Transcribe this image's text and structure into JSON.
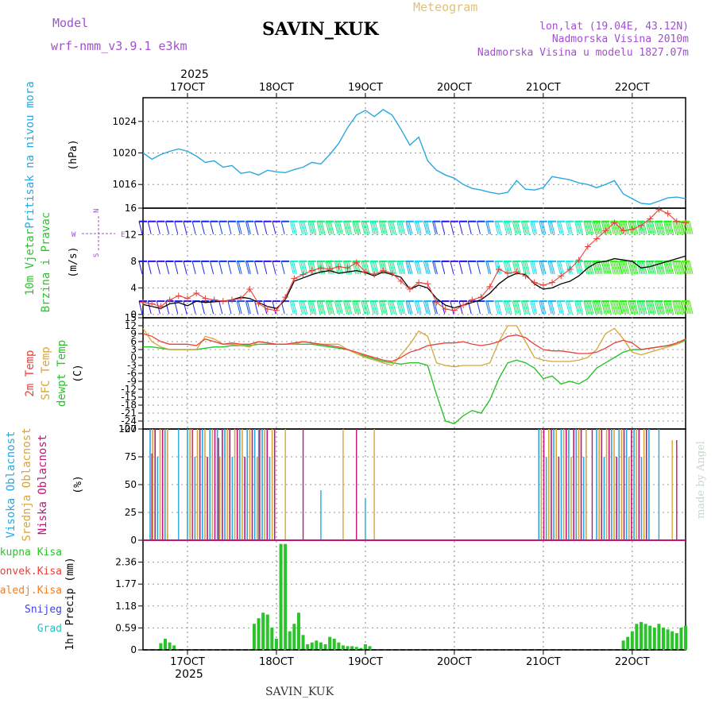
{
  "header": {
    "model_label": "Model",
    "model_name": "wrf-nmm_v3.9.1 e3km",
    "station": "SAVIN_KUK",
    "product": "Meteogram",
    "lonlat": "lon,lat (19.04E, 43.12N)",
    "elevation": "Nadmorska Visina 2010m",
    "model_elevation": "Nadmorska Visina u modelu 1827.07m",
    "footer_station": "SAVIN_KUK",
    "watermark": "made by Angel",
    "year": "2025"
  },
  "colors": {
    "pressure": "#29a8e0",
    "temp2m": "#e8403a",
    "sfc": "#d9a53a",
    "dewpt": "#2ac42a",
    "high_cloud": "#29a8e0",
    "mid_cloud": "#d9a53a",
    "low_cloud": "#c2157a",
    "rain": "#2ac42a",
    "conv": "#e8403a",
    "frz": "#f07e2a",
    "snow": "#4040e0",
    "hail": "#2ac0c0",
    "model": "#a050d0",
    "header_orange": "#e6c070"
  },
  "chart_data": [
    {
      "type": "line",
      "id": "pressure",
      "title": "Pritisak na nivou mora",
      "ylabel": "(hPa)",
      "ylim": [
        1013,
        1027
      ],
      "yticks": [
        "1016",
        "1020",
        "1024"
      ],
      "x_days": [
        "17OCT",
        "18OCT",
        "19OCT",
        "20OCT",
        "21OCT",
        "22OCT"
      ],
      "x_range_days": [
        16.5,
        22.6
      ],
      "series": [
        {
          "name": "MSLP",
          "x": [
            16.5,
            16.6,
            16.7,
            16.8,
            16.9,
            17.0,
            17.1,
            17.2,
            17.3,
            17.4,
            17.5,
            17.6,
            17.7,
            17.8,
            17.9,
            18.0,
            18.1,
            18.2,
            18.3,
            18.4,
            18.5,
            18.6,
            18.7,
            18.8,
            18.9,
            19.0,
            19.1,
            19.2,
            19.3,
            19.4,
            19.5,
            19.6,
            19.7,
            19.8,
            19.9,
            20.0,
            20.1,
            20.2,
            20.3,
            20.4,
            20.5,
            20.6,
            20.7,
            20.8,
            20.9,
            21.0,
            21.1,
            21.2,
            21.3,
            21.4,
            21.5,
            21.6,
            21.7,
            21.8,
            21.9,
            22.0,
            22.1,
            22.2,
            22.3,
            22.4,
            22.5,
            22.6
          ],
          "values": [
            1020.0,
            1019.2,
            1019.8,
            1020.2,
            1020.5,
            1020.2,
            1019.6,
            1018.8,
            1019.0,
            1018.2,
            1018.4,
            1017.4,
            1017.6,
            1017.2,
            1017.8,
            1017.6,
            1017.5,
            1017.9,
            1018.2,
            1018.8,
            1018.6,
            1019.8,
            1021.2,
            1023.2,
            1024.8,
            1025.4,
            1024.6,
            1025.5,
            1024.8,
            1023.0,
            1021.0,
            1022.0,
            1019.0,
            1017.8,
            1017.2,
            1016.8,
            1016.0,
            1015.5,
            1015.3,
            1015.0,
            1014.8,
            1015.0,
            1016.5,
            1015.4,
            1015.3,
            1015.6,
            1017.0,
            1016.8,
            1016.6,
            1016.2,
            1016.0,
            1015.6,
            1016.0,
            1016.5,
            1014.8,
            1014.2,
            1013.6,
            1013.5,
            1013.9,
            1014.3,
            1014.4,
            1014.2
          ]
        }
      ]
    },
    {
      "type": "line",
      "id": "wind",
      "title": "10m Vjetar Brzina i Pravac",
      "ylabel": "(m/s)",
      "ylim": [
        -0.5,
        16
      ],
      "yticks": [
        "0",
        "4",
        "8",
        "12",
        "16"
      ],
      "barb_rows": [
        2,
        8,
        14
      ],
      "compass_legend": [
        "W",
        "E",
        "N",
        "S"
      ],
      "series": [
        {
          "name": "speed",
          "x": [
            16.5,
            16.6,
            16.7,
            16.8,
            16.9,
            17.0,
            17.1,
            17.2,
            17.3,
            17.4,
            17.5,
            17.6,
            17.7,
            17.8,
            17.9,
            18.0,
            18.1,
            18.2,
            18.3,
            18.4,
            18.5,
            18.6,
            18.7,
            18.8,
            18.9,
            19.0,
            19.1,
            19.2,
            19.3,
            19.4,
            19.5,
            19.6,
            19.7,
            19.8,
            19.9,
            20.0,
            20.1,
            20.2,
            20.3,
            20.4,
            20.5,
            20.6,
            20.7,
            20.8,
            20.9,
            21.0,
            21.1,
            21.2,
            21.3,
            21.4,
            21.5,
            21.6,
            21.7,
            21.8,
            21.9,
            22.0,
            22.1,
            22.2,
            22.3,
            22.4,
            22.5,
            22.6
          ],
          "values": [
            1.5,
            1.2,
            0.9,
            1.6,
            1.8,
            1.3,
            2.0,
            1.8,
            1.9,
            2.0,
            2.2,
            2.6,
            2.4,
            1.8,
            1.2,
            0.9,
            2.2,
            5.0,
            5.5,
            6.0,
            6.4,
            6.6,
            6.2,
            6.4,
            6.6,
            6.3,
            5.8,
            6.4,
            6.0,
            5.6,
            3.8,
            4.4,
            4.0,
            2.4,
            1.4,
            1.0,
            1.4,
            1.8,
            2.2,
            3.2,
            4.6,
            5.6,
            6.2,
            6.0,
            4.6,
            3.8,
            4.0,
            4.6,
            5.0,
            5.8,
            7.0,
            7.8,
            8.0,
            8.4,
            8.2,
            8.0,
            7.0,
            7.2,
            7.6,
            8.0,
            8.4,
            8.8
          ]
        },
        {
          "name": "gust",
          "x": [
            16.5,
            16.6,
            16.7,
            16.8,
            16.9,
            17.0,
            17.1,
            17.2,
            17.3,
            17.4,
            17.5,
            17.6,
            17.7,
            17.8,
            17.9,
            18.0,
            18.1,
            18.2,
            18.3,
            18.4,
            18.5,
            18.6,
            18.7,
            18.8,
            18.9,
            19.0,
            19.1,
            19.2,
            19.3,
            19.4,
            19.5,
            19.6,
            19.7,
            19.8,
            19.9,
            20.0,
            20.1,
            20.2,
            20.3,
            20.4,
            20.5,
            20.6,
            20.7,
            20.8,
            20.9,
            21.0,
            21.1,
            21.2,
            21.3,
            21.4,
            21.5,
            21.6,
            21.7,
            21.8,
            21.9,
            22.0,
            22.1,
            22.2,
            22.3,
            22.4,
            22.5,
            22.6
          ],
          "values": [
            1.8,
            1.6,
            1.2,
            2.2,
            2.8,
            2.4,
            3.2,
            2.4,
            2.2,
            2.0,
            2.2,
            2.4,
            3.8,
            1.6,
            0.8,
            0.6,
            2.6,
            5.4,
            6.0,
            6.6,
            7.0,
            6.8,
            7.2,
            7.0,
            7.8,
            6.4,
            6.0,
            6.6,
            6.2,
            5.0,
            3.8,
            4.8,
            4.6,
            1.8,
            0.8,
            0.6,
            1.4,
            2.2,
            2.6,
            4.2,
            6.8,
            6.2,
            6.4,
            5.8,
            4.8,
            4.4,
            4.8,
            5.8,
            6.8,
            8.2,
            10.2,
            11.4,
            12.6,
            13.8,
            12.6,
            12.8,
            13.4,
            14.4,
            15.8,
            15.2,
            14.0,
            13.8
          ]
        }
      ]
    },
    {
      "type": "line",
      "id": "temperature",
      "title": [
        "2m Temp",
        "SFC Temp",
        "dewpt Temp"
      ],
      "ylabel": "(C)",
      "ylim": [
        -27,
        15
      ],
      "yticks": [
        "15",
        "12",
        "9",
        "6",
        "3",
        "0",
        "-3",
        "-6",
        "-9",
        "-12",
        "-15",
        "-18",
        "-21",
        "-24",
        "-27"
      ],
      "series": [
        {
          "name": "2m Temp",
          "x": [
            16.5,
            16.6,
            16.7,
            16.8,
            16.9,
            17.0,
            17.1,
            17.2,
            17.3,
            17.4,
            17.5,
            17.6,
            17.7,
            17.8,
            17.9,
            18.0,
            18.1,
            18.2,
            18.3,
            18.4,
            18.5,
            18.6,
            18.7,
            18.8,
            18.9,
            19.0,
            19.1,
            19.2,
            19.3,
            19.4,
            19.5,
            19.6,
            19.7,
            19.8,
            19.9,
            20.0,
            20.1,
            20.2,
            20.3,
            20.4,
            20.5,
            20.6,
            20.7,
            20.8,
            20.9,
            21.0,
            21.1,
            21.2,
            21.3,
            21.4,
            21.5,
            21.6,
            21.7,
            21.8,
            21.9,
            22.0,
            22.1,
            22.2,
            22.3,
            22.4,
            22.5,
            22.6
          ],
          "values": [
            9,
            8,
            6,
            5,
            5,
            5,
            4.5,
            7,
            6,
            5,
            5.5,
            5,
            5,
            6,
            5.5,
            5,
            5,
            5.5,
            6,
            5.5,
            5,
            4.5,
            4,
            3,
            2,
            1,
            0,
            -1,
            -1.5,
            0,
            2,
            3,
            4.5,
            5,
            5.5,
            5.5,
            6,
            5,
            4.5,
            5,
            6,
            8,
            8.5,
            7.5,
            5,
            3,
            2.5,
            2.5,
            2,
            1.5,
            1.5,
            2,
            3.5,
            5.5,
            6.5,
            5.5,
            3,
            3.5,
            4,
            4.5,
            5.5,
            7
          ]
        },
        {
          "name": "SFC Temp",
          "x": [
            16.5,
            16.6,
            16.7,
            16.8,
            16.9,
            17.0,
            17.1,
            17.2,
            17.3,
            17.4,
            17.5,
            17.6,
            17.7,
            17.8,
            17.9,
            18.0,
            18.1,
            18.2,
            18.3,
            18.4,
            18.5,
            18.6,
            18.7,
            18.8,
            18.9,
            19.0,
            19.1,
            19.2,
            19.3,
            19.4,
            19.5,
            19.6,
            19.7,
            19.8,
            19.9,
            20.0,
            20.1,
            20.2,
            20.3,
            20.4,
            20.5,
            20.6,
            20.7,
            20.8,
            20.9,
            21.0,
            21.1,
            21.2,
            21.3,
            21.4,
            21.5,
            21.6,
            21.7,
            21.8,
            21.9,
            22.0,
            22.1,
            22.2,
            22.3,
            22.4,
            22.5,
            22.6
          ],
          "values": [
            11,
            6,
            4,
            3,
            3,
            3,
            3,
            8,
            7,
            5,
            5,
            4.5,
            4,
            6,
            5.5,
            5,
            5,
            5,
            6,
            5.5,
            5,
            5,
            5,
            3,
            1.5,
            0,
            -1,
            -2,
            -3,
            1,
            5,
            10,
            8,
            -2,
            -3,
            -3.5,
            -3,
            -3,
            -3,
            -2,
            6,
            12,
            12,
            6,
            0,
            -1,
            -1.5,
            -1.5,
            -1.5,
            -1,
            0,
            3,
            9,
            11,
            7,
            2,
            1,
            2,
            3,
            4,
            5,
            7
          ]
        },
        {
          "name": "dewpt Temp",
          "x": [
            16.5,
            16.6,
            16.7,
            16.8,
            16.9,
            17.0,
            17.1,
            17.2,
            17.3,
            17.4,
            17.5,
            17.6,
            17.7,
            17.8,
            17.9,
            18.0,
            18.1,
            18.2,
            18.3,
            18.4,
            18.5,
            18.6,
            18.7,
            18.8,
            18.9,
            19.0,
            19.1,
            19.2,
            19.3,
            19.4,
            19.5,
            19.6,
            19.7,
            19.8,
            19.9,
            20.0,
            20.1,
            20.2,
            20.3,
            20.4,
            20.5,
            20.6,
            20.7,
            20.8,
            20.9,
            21.0,
            21.1,
            21.2,
            21.3,
            21.4,
            21.5,
            21.6,
            21.7,
            21.8,
            21.9,
            22.0,
            22.1,
            22.2,
            22.3,
            22.4,
            22.5,
            22.6
          ],
          "values": [
            4,
            4,
            3.5,
            3,
            3,
            3,
            3,
            3.5,
            4,
            4,
            4.5,
            4.5,
            4.5,
            5,
            5,
            5,
            5,
            5,
            5,
            5,
            4.5,
            4,
            3.5,
            3,
            1.5,
            0.5,
            -0.5,
            -1.5,
            -2,
            -2.5,
            -2,
            -2,
            -3,
            -14,
            -24,
            -25,
            -22,
            -20,
            -21,
            -16,
            -8,
            -2,
            -1,
            -2,
            -4,
            -8,
            -7,
            -10,
            -9,
            -10,
            -8,
            -4,
            -2,
            0,
            2,
            3,
            3,
            3.5,
            4,
            4.5,
            5,
            6.5
          ]
        }
      ]
    },
    {
      "type": "bar",
      "id": "clouds",
      "title": [
        "Visoka Oblacnost",
        "Srednja Oblacnost",
        "Niska Oblacnost"
      ],
      "ylabel": "(%)",
      "ylim": [
        0,
        100
      ],
      "yticks": [
        "0",
        "25",
        "50",
        "75",
        "100"
      ],
      "cloud_spans_days": [
        [
          16.58,
          16.78
        ],
        [
          17.0,
          18.0
        ],
        [
          20.95,
          21.5
        ],
        [
          21.6,
          22.2
        ]
      ],
      "scattered_low_days": [
        16.6,
        16.9,
        17.05,
        17.35,
        17.8,
        18.1,
        18.3,
        18.5,
        18.75,
        18.9,
        19.0,
        19.1,
        21.55,
        22.3,
        22.45,
        22.5
      ]
    },
    {
      "type": "bar",
      "id": "precip",
      "title": "1hr Precip",
      "ylabel": "(mm)",
      "ylim": [
        0,
        2.95
      ],
      "yticks": [
        "0",
        "0.59",
        "1.18",
        "1.77",
        "2.36"
      ],
      "legend": [
        "Ukupna Kisa",
        "Konvek.Kisa",
        "Zaledj.Kisa",
        "Snijeg",
        "Grad"
      ],
      "x": [
        16.7,
        16.75,
        16.8,
        16.85,
        17.75,
        17.8,
        17.85,
        17.9,
        17.95,
        18.0,
        18.05,
        18.1,
        18.15,
        18.2,
        18.25,
        18.3,
        18.35,
        18.4,
        18.45,
        18.5,
        18.55,
        18.6,
        18.65,
        18.7,
        18.75,
        18.8,
        18.85,
        18.9,
        18.95,
        19.0,
        19.05,
        21.9,
        21.95,
        22.0,
        22.05,
        22.1,
        22.15,
        22.2,
        22.25,
        22.3,
        22.35,
        22.4,
        22.45,
        22.5,
        22.55,
        22.6
      ],
      "values": [
        0.18,
        0.3,
        0.2,
        0.12,
        0.7,
        0.85,
        1.0,
        0.95,
        0.6,
        0.3,
        2.85,
        2.85,
        0.5,
        0.7,
        1.0,
        0.4,
        0.15,
        0.2,
        0.25,
        0.2,
        0.15,
        0.35,
        0.3,
        0.2,
        0.12,
        0.1,
        0.1,
        0.08,
        0.05,
        0.15,
        0.1,
        0.25,
        0.35,
        0.5,
        0.7,
        0.75,
        0.7,
        0.65,
        0.6,
        0.7,
        0.6,
        0.55,
        0.5,
        0.45,
        0.6,
        0.65
      ]
    }
  ]
}
